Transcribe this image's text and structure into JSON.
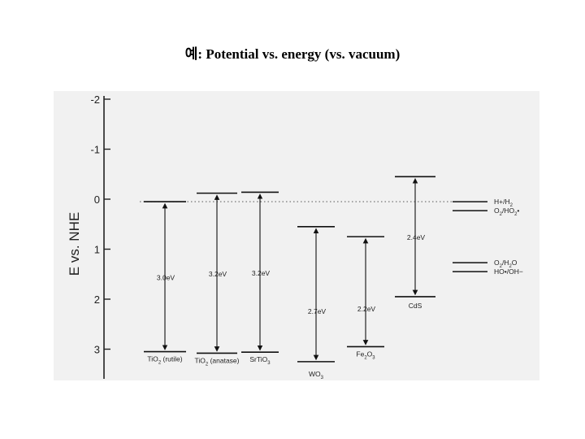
{
  "title": "예: Potential vs. energy (vs. vacuum)",
  "chart_data": {
    "type": "band-diagram",
    "ylabel": "E vs. NHE",
    "yticks": [
      "-2",
      "-1",
      "0",
      "1",
      "2",
      "3"
    ],
    "ylim": [
      -2.1,
      3.55
    ],
    "y_inverted": true,
    "reference_line_y": 0.05,
    "semiconductors": [
      {
        "name": "TiO2 (rutile)",
        "cb": 0.05,
        "vb": 3.05,
        "gap_label": "3.0eV"
      },
      {
        "name": "TiO2 (anatase)",
        "cb": -0.12,
        "vb": 3.08,
        "gap_label": "3.2eV"
      },
      {
        "name": "SrTiO3",
        "cb": -0.14,
        "vb": 3.06,
        "gap_label": "3.2eV"
      },
      {
        "name": "WO3",
        "cb": 0.55,
        "vb": 3.25,
        "gap_label": "2.7eV"
      },
      {
        "name": "Fe2O3",
        "cb": 0.75,
        "vb": 2.95,
        "gap_label": "2.2eV"
      },
      {
        "name": "CdS",
        "cb": -0.45,
        "vb": 1.95,
        "gap_label": "2.4eV"
      }
    ],
    "redox_couples": [
      {
        "label": "H+/H2",
        "y": 0.05
      },
      {
        "label": "O2/HO2•",
        "y": 0.23
      },
      {
        "label": "O2/H2O",
        "y": 1.27
      },
      {
        "label": "HO•/OH−",
        "y": 1.45
      }
    ]
  }
}
